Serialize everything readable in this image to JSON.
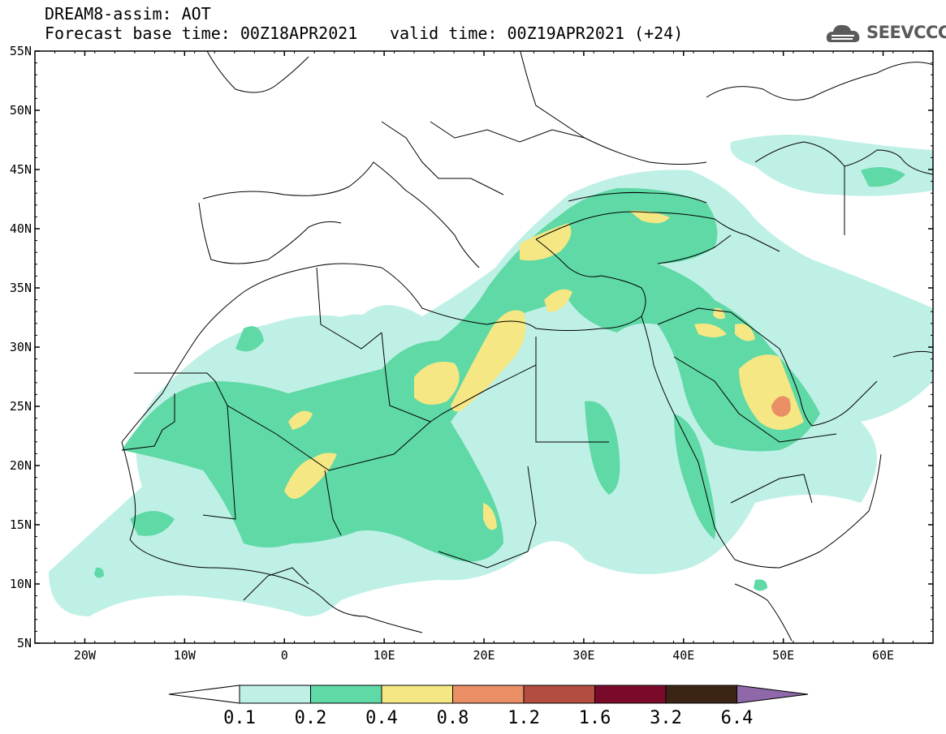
{
  "title": {
    "line1": "DREAM8-assim: AOT",
    "line2": "Forecast base time: 00Z18APR2021",
    "valid": "valid time: 00Z19APR2021 (+24)"
  },
  "logo": {
    "text": "SEEVCCC",
    "icon": "cloud-logo-icon"
  },
  "map": {
    "lon_range": [
      -25,
      65
    ],
    "lat_range": [
      5,
      55
    ],
    "lat_ticks": [
      {
        "lat": 55,
        "label": "55N"
      },
      {
        "lat": 50,
        "label": "50N"
      },
      {
        "lat": 45,
        "label": "45N"
      },
      {
        "lat": 40,
        "label": "40N"
      },
      {
        "lat": 35,
        "label": "35N"
      },
      {
        "lat": 30,
        "label": "30N"
      },
      {
        "lat": 25,
        "label": "25N"
      },
      {
        "lat": 20,
        "label": "20N"
      },
      {
        "lat": 15,
        "label": "15N"
      },
      {
        "lat": 10,
        "label": "10N"
      },
      {
        "lat": 5,
        "label": "5N"
      }
    ],
    "lon_ticks": [
      {
        "lon": -20,
        "label": "20W"
      },
      {
        "lon": -10,
        "label": "10W"
      },
      {
        "lon": 0,
        "label": "0"
      },
      {
        "lon": 10,
        "label": "10E"
      },
      {
        "lon": 20,
        "label": "20E"
      },
      {
        "lon": 30,
        "label": "30E"
      },
      {
        "lon": 40,
        "label": "40E"
      },
      {
        "lon": 50,
        "label": "50E"
      },
      {
        "lon": 60,
        "label": "60E"
      }
    ]
  },
  "colorbar": {
    "colors": [
      "#ffffff",
      "#bff0e6",
      "#5fd9a6",
      "#f5e784",
      "#ea8e66",
      "#b24d3f",
      "#7a0a2a",
      "#3c2415",
      "#8e68a8"
    ],
    "labels": [
      "0.1",
      "0.2",
      "0.4",
      "0.8",
      "1.2",
      "1.6",
      "3.2",
      "6.4"
    ]
  }
}
